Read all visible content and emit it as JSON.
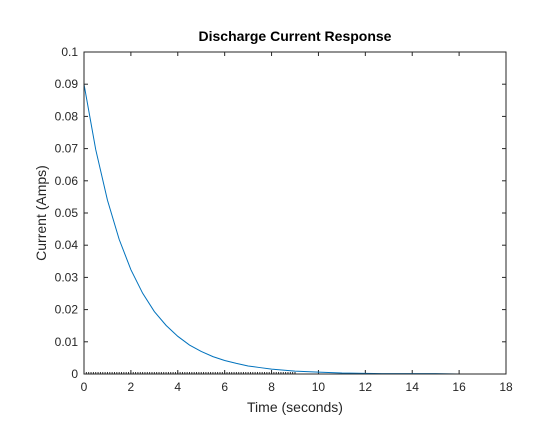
{
  "chart_data": {
    "type": "line",
    "title": "Discharge Current Response",
    "xlabel": "Time (seconds)",
    "ylabel": "Current (Amps)",
    "xlim": [
      0,
      18
    ],
    "ylim": [
      0,
      0.1
    ],
    "xticks": [
      0,
      2,
      4,
      6,
      8,
      10,
      12,
      14,
      16,
      18
    ],
    "yticks": [
      0,
      0.01,
      0.02,
      0.03,
      0.04,
      0.05,
      0.06,
      0.07,
      0.08,
      0.09,
      0.1
    ],
    "xtick_labels": [
      "0",
      "2",
      "4",
      "6",
      "8",
      "10",
      "12",
      "14",
      "16",
      "18"
    ],
    "ytick_labels": [
      "0",
      "0.01",
      "0.02",
      "0.03",
      "0.04",
      "0.05",
      "0.06",
      "0.07",
      "0.08",
      "0.09",
      "0.1"
    ],
    "grid": false,
    "series": [
      {
        "color": "#0072BD",
        "x": [
          0,
          0.5,
          1,
          1.5,
          2,
          2.5,
          3,
          3.5,
          4,
          4.5,
          5,
          5.5,
          6,
          6.5,
          7,
          7.5,
          8,
          9,
          10,
          11,
          12,
          13,
          14,
          15,
          16,
          17,
          18
        ],
        "y": [
          0.09,
          0.0697,
          0.054,
          0.0418,
          0.0324,
          0.0251,
          0.0194,
          0.0151,
          0.0117,
          0.009,
          0.007,
          0.0054,
          0.0042,
          0.0033,
          0.0025,
          0.002,
          0.0015,
          0.0009,
          0.0006,
          0.0003,
          0.0002,
          0.0001,
          0.0001,
          0.0001,
          0.0,
          0.0,
          0.0
        ]
      }
    ],
    "colors": {
      "axis": "#262626",
      "marker_baseline": "#262626"
    }
  }
}
